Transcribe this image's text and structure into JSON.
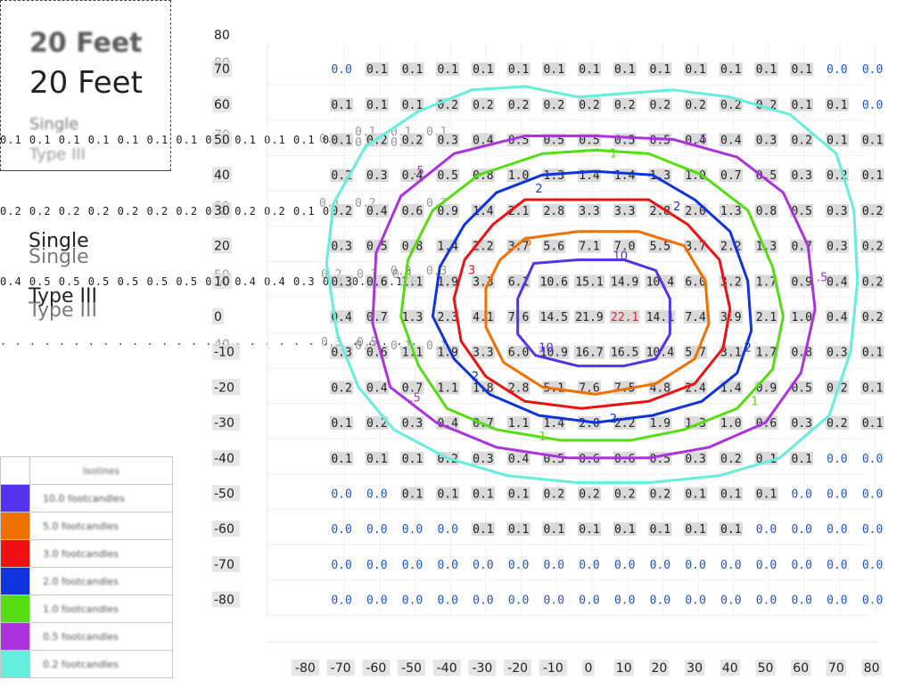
{
  "title_box": {
    "line1": "20 Feet",
    "line2": "20 Feet",
    "line3": "Single",
    "line4": "Type III"
  },
  "ghost_rows": {
    "a": "0.1 0.1 0.1 0.1 0.1 0.1 0.1 0.1 0.1 0.1 0.1 0.1 0.2 0.1 0.1 0.1",
    "b": "0.2 0.2 0.2 0.2 0.2 0.2 0.2 0.2 0.2 0.2 0.1 0.1 0.1 0.2",
    "c": "0.4 0.5 0.5 0.5 0.5 0.5 0.5 0.4 0.4 0.4 0.3 0.1 0.1 0.1 0.1 0.1",
    "d": ". . . . . . . . . . . . . . . . . . . . . . . . . . . . . . . . . . . . . . . . . ."
  },
  "ghost_labels": {
    "single1": "Single",
    "single2": "Single",
    "type1": "Type III",
    "type2": "Type III"
  },
  "ghost_axis_labels": [
    "80",
    "70",
    "50",
    "60",
    "40"
  ],
  "ghost_cell_values": [
    "0.1",
    "0.1",
    "0.1",
    "0.1",
    "0.2",
    "0.0",
    "0.1",
    "0.1",
    "0.2",
    "0.3",
    "0.2",
    "0.0",
    "0.1",
    "0.1",
    "0.2",
    "0.3",
    "0.1",
    "0.3",
    "0.5"
  ],
  "legend": {
    "header": "Isolines",
    "entries": [
      {
        "color": "#5533ee",
        "label": "10.0 footcandles"
      },
      {
        "color": "#f07000",
        "label": "5.0 footcandles"
      },
      {
        "color": "#ee1111",
        "label": "3.0 footcandles"
      },
      {
        "color": "#1133dd",
        "label": "2.0 footcandles"
      },
      {
        "color": "#55dd11",
        "label": "1.0 footcandles"
      },
      {
        "color": "#aa33dd",
        "label": "0.5 footcandles"
      },
      {
        "color": "#66eedd",
        "label": "0.2 footcandles"
      }
    ]
  },
  "chart_data": {
    "type": "heatmap",
    "title": "20 Feet",
    "xlabel": "",
    "ylabel": "",
    "x_ticks": [
      "-80",
      "-70",
      "-60",
      "-50",
      "-40",
      "-30",
      "-20",
      "-10",
      "0",
      "10",
      "20",
      "30",
      "40",
      "50",
      "60",
      "70",
      "80"
    ],
    "y_ticks": [
      "80",
      "70",
      "60",
      "50",
      "40",
      "30",
      "20",
      "10",
      "0",
      "-10",
      "-20",
      "-30",
      "-40",
      "-50",
      "-60",
      "-70",
      "-80"
    ],
    "grid_x": [
      -70,
      -60,
      -50,
      -40,
      -30,
      -20,
      -10,
      0,
      10,
      20,
      30,
      40,
      50,
      60,
      70,
      80
    ],
    "grid_y": [
      70,
      60,
      50,
      40,
      30,
      20,
      10,
      0,
      -10,
      -20,
      -30,
      -40,
      -50,
      -60,
      -70,
      -80
    ],
    "zero_color": "#2255cc",
    "value_color": "#222222",
    "peak_color": "#dd2222",
    "values": [
      [
        "0.0",
        "0.1",
        "0.1",
        "0.1",
        "0.1",
        "0.1",
        "0.1",
        "0.1",
        "0.1",
        "0.1",
        "0.1",
        "0.1",
        "0.1",
        "0.1",
        "0.0",
        "0.0"
      ],
      [
        "0.1",
        "0.1",
        "0.1",
        "0.2",
        "0.2",
        "0.2",
        "0.2",
        "0.2",
        "0.2",
        "0.2",
        "0.2",
        "0.2",
        "0.2",
        "0.1",
        "0.1",
        "0.0"
      ],
      [
        "0.1",
        "0.2",
        "0.2",
        "0.3",
        "0.4",
        "0.5",
        "0.5",
        "0.5",
        "0.5",
        "0.5",
        "0.4",
        "0.4",
        "0.3",
        "0.2",
        "0.1",
        "0.1"
      ],
      [
        "0.2",
        "0.3",
        "0.4",
        "0.5",
        "0.8",
        "1.0",
        "1.3",
        "1.4",
        "1.4",
        "1.3",
        "1.0",
        "0.7",
        "0.5",
        "0.3",
        "0.2",
        "0.1"
      ],
      [
        "0.2",
        "0.4",
        "0.6",
        "0.9",
        "1.4",
        "2.1",
        "2.8",
        "3.3",
        "3.3",
        "2.8",
        "2.0",
        "1.3",
        "0.8",
        "0.5",
        "0.3",
        "0.2"
      ],
      [
        "0.3",
        "0.5",
        "0.8",
        "1.4",
        "2.2",
        "3.7",
        "5.6",
        "7.1",
        "7.0",
        "5.5",
        "3.7",
        "2.2",
        "1.3",
        "0.7",
        "0.3",
        "0.2"
      ],
      [
        "0.3",
        "0.6",
        "1.1",
        "1.9",
        "3.3",
        "6.1",
        "10.6",
        "15.1",
        "14.9",
        "10.4",
        "6.0",
        "3.2",
        "1.7",
        "0.9",
        "0.4",
        "0.2"
      ],
      [
        "0.4",
        "0.7",
        "1.3",
        "2.3",
        "4.1",
        "7.6",
        "14.5",
        "21.9",
        "22.1",
        "14.1",
        "7.4",
        "3.9",
        "2.1",
        "1.0",
        "0.4",
        "0.2"
      ],
      [
        "0.3",
        "0.6",
        "1.1",
        "1.9",
        "3.3",
        "6.0",
        "10.9",
        "16.7",
        "16.5",
        "10.4",
        "5.7",
        "3.1",
        "1.7",
        "0.8",
        "0.3",
        "0.1"
      ],
      [
        "0.2",
        "0.4",
        "0.7",
        "1.1",
        "1.8",
        "2.8",
        "5.1",
        "7.6",
        "7.5",
        "4.8",
        "2.4",
        "1.4",
        "0.9",
        "0.5",
        "0.2",
        "0.1"
      ],
      [
        "0.1",
        "0.2",
        "0.3",
        "0.4",
        "0.7",
        "1.1",
        "1.4",
        "2.0",
        "2.2",
        "1.9",
        "1.3",
        "1.0",
        "0.6",
        "0.3",
        "0.2",
        "0.1"
      ],
      [
        "0.1",
        "0.1",
        "0.1",
        "0.2",
        "0.3",
        "0.4",
        "0.5",
        "0.6",
        "0.6",
        "0.5",
        "0.3",
        "0.2",
        "0.1",
        "0.1",
        "0.0",
        "0.0"
      ],
      [
        "0.0",
        "0.0",
        "0.1",
        "0.1",
        "0.1",
        "0.1",
        "0.2",
        "0.2",
        "0.2",
        "0.2",
        "0.1",
        "0.1",
        "0.1",
        "0.0",
        "0.0",
        "0.0"
      ],
      [
        "0.0",
        "0.0",
        "0.0",
        "0.0",
        "0.1",
        "0.1",
        "0.1",
        "0.1",
        "0.1",
        "0.1",
        "0.1",
        "0.1",
        "0.0",
        "0.0",
        "0.0",
        "0.0"
      ],
      [
        "0.0",
        "0.0",
        "0.0",
        "0.0",
        "0.0",
        "0.0",
        "0.0",
        "0.0",
        "0.0",
        "0.0",
        "0.0",
        "0.0",
        "0.0",
        "0.0",
        "0.0",
        "0.0"
      ],
      [
        "0.0",
        "0.0",
        "0.0",
        "0.0",
        "0.0",
        "0.0",
        "0.0",
        "0.0",
        "0.0",
        "0.0",
        "0.0",
        "0.0",
        "0.0",
        "0.0",
        "0.0",
        "0.0"
      ]
    ],
    "isolines": [
      {
        "level": 10,
        "label": "10",
        "color": "#5533ee",
        "points": [
          [
            -17.5,
            15
          ],
          [
            -5,
            16
          ],
          [
            8,
            16
          ],
          [
            17,
            13
          ],
          [
            21,
            5
          ],
          [
            21,
            -5
          ],
          [
            17,
            -12
          ],
          [
            8,
            -14
          ],
          [
            -5,
            -14
          ],
          [
            -17,
            -11
          ],
          [
            -22,
            -5
          ],
          [
            -22,
            5
          ]
        ]
      },
      {
        "level": 5,
        "label": "5",
        "color": "#f07000",
        "points": [
          [
            -20,
            22
          ],
          [
            -5,
            24
          ],
          [
            12,
            24
          ],
          [
            25,
            20
          ],
          [
            31,
            10
          ],
          [
            32,
            -2
          ],
          [
            28,
            -12
          ],
          [
            17,
            -19
          ],
          [
            0,
            -22
          ],
          [
            -15,
            -20
          ],
          [
            -26,
            -13
          ],
          [
            -31,
            -3
          ],
          [
            -31,
            8
          ],
          [
            -27,
            16
          ]
        ]
      },
      {
        "level": 3,
        "label": "3",
        "color": "#ee1111",
        "points": [
          [
            -20,
            33
          ],
          [
            -3,
            33
          ],
          [
            15,
            33
          ],
          [
            26,
            26
          ],
          [
            35,
            16
          ],
          [
            38,
            2
          ],
          [
            36,
            -9
          ],
          [
            28,
            -19
          ],
          [
            15,
            -24
          ],
          [
            -4,
            -26
          ],
          [
            -20,
            -24
          ],
          [
            -31,
            -17
          ],
          [
            -38,
            -7
          ],
          [
            -40,
            5
          ],
          [
            -37,
            16
          ],
          [
            -29,
            26
          ]
        ]
      },
      {
        "level": 2,
        "label": "2",
        "color": "#1133dd",
        "points": [
          [
            -15,
            40
          ],
          [
            0,
            41
          ],
          [
            16,
            40
          ],
          [
            28,
            33
          ],
          [
            38,
            24
          ],
          [
            43,
            10
          ],
          [
            44,
            -4
          ],
          [
            40,
            -16
          ],
          [
            30,
            -24
          ],
          [
            16,
            -28
          ],
          [
            0,
            -30
          ],
          [
            -16,
            -28
          ],
          [
            -30,
            -22
          ],
          [
            -40,
            -12
          ],
          [
            -46,
            0
          ],
          [
            -44,
            14
          ],
          [
            -37,
            26
          ],
          [
            -28,
            35
          ]
        ]
      },
      {
        "level": 1,
        "label": "1",
        "color": "#55dd11",
        "points": [
          [
            -15,
            46
          ],
          [
            0,
            47
          ],
          [
            15,
            46
          ],
          [
            30,
            40
          ],
          [
            43,
            30
          ],
          [
            50,
            14
          ],
          [
            53,
            0
          ],
          [
            50,
            -15
          ],
          [
            40,
            -26
          ],
          [
            25,
            -32
          ],
          [
            10,
            -35
          ],
          [
            -10,
            -35
          ],
          [
            -28,
            -32
          ],
          [
            -42,
            -26
          ],
          [
            -50,
            -14
          ],
          [
            -55,
            0
          ],
          [
            -53,
            16
          ],
          [
            -46,
            30
          ],
          [
            -33,
            40
          ]
        ]
      },
      {
        "level": 0.5,
        "label": ".5",
        "color": "#aa33dd",
        "points": [
          [
            -20,
            51
          ],
          [
            0,
            51
          ],
          [
            22,
            50
          ],
          [
            40,
            45
          ],
          [
            53,
            35
          ],
          [
            60,
            20
          ],
          [
            62,
            2
          ],
          [
            58,
            -16
          ],
          [
            48,
            -30
          ],
          [
            32,
            -37
          ],
          [
            15,
            -40
          ],
          [
            -8,
            -40
          ],
          [
            -28,
            -37
          ],
          [
            -45,
            -30
          ],
          [
            -58,
            -20
          ],
          [
            -63,
            -2
          ],
          [
            -62,
            18
          ],
          [
            -55,
            34
          ],
          [
            -40,
            46
          ]
        ]
      },
      {
        "level": 0.2,
        "label": "",
        "color": "#66eedd",
        "points": [
          [
            -35,
            64
          ],
          [
            -20,
            65
          ],
          [
            -5,
            62
          ],
          [
            8,
            63
          ],
          [
            22,
            64
          ],
          [
            38,
            62
          ],
          [
            55,
            57
          ],
          [
            68,
            46
          ],
          [
            73,
            30
          ],
          [
            74,
            10
          ],
          [
            72,
            -10
          ],
          [
            66,
            -28
          ],
          [
            52,
            -40
          ],
          [
            35,
            -45
          ],
          [
            15,
            -47
          ],
          [
            -5,
            -47
          ],
          [
            -25,
            -45
          ],
          [
            -42,
            -40
          ],
          [
            -57,
            -32
          ],
          [
            -67,
            -20
          ],
          [
            -73,
            -5
          ],
          [
            -76,
            15
          ],
          [
            -74,
            32
          ],
          [
            -65,
            48
          ],
          [
            -50,
            58
          ]
        ]
      }
    ],
    "isoline_labels": [
      {
        "text": "10",
        "color": "#5533ee",
        "x": 7,
        "y": 16
      },
      {
        "text": "5",
        "color": "#f07000",
        "x": -19,
        "y": 20
      },
      {
        "text": "3",
        "color": "#ee1111",
        "x": -35,
        "y": 12
      },
      {
        "text": "2",
        "color": "#1133dd",
        "x": -16,
        "y": 35
      },
      {
        "text": "2",
        "color": "#1133dd",
        "x": 23,
        "y": 30
      },
      {
        "text": "2",
        "color": "#1133dd",
        "x": -34,
        "y": -18
      },
      {
        "text": "2",
        "color": "#1133dd",
        "x": 43,
        "y": -10
      },
      {
        "text": "10",
        "color": "#5533ee",
        "x": -14,
        "y": -10
      },
      {
        "text": "2",
        "color": "#1133dd",
        "x": 5,
        "y": -30
      },
      {
        "text": "1",
        "color": "#55dd11",
        "x": 5,
        "y": 45
      },
      {
        "text": "1",
        "color": "#55dd11",
        "x": 45,
        "y": -25
      },
      {
        "text": "1",
        "color": "#55dd11",
        "x": -15,
        "y": -35
      },
      {
        "text": ".5",
        "color": "#aa33dd",
        "x": 30,
        "y": 49
      },
      {
        "text": ".5",
        "color": "#aa33dd",
        "x": -50,
        "y": 40
      },
      {
        "text": ".5",
        "color": "#aa33dd",
        "x": -51,
        "y": -24
      },
      {
        "text": ".5",
        "color": "#aa33dd",
        "x": 64,
        "y": 10
      }
    ]
  }
}
